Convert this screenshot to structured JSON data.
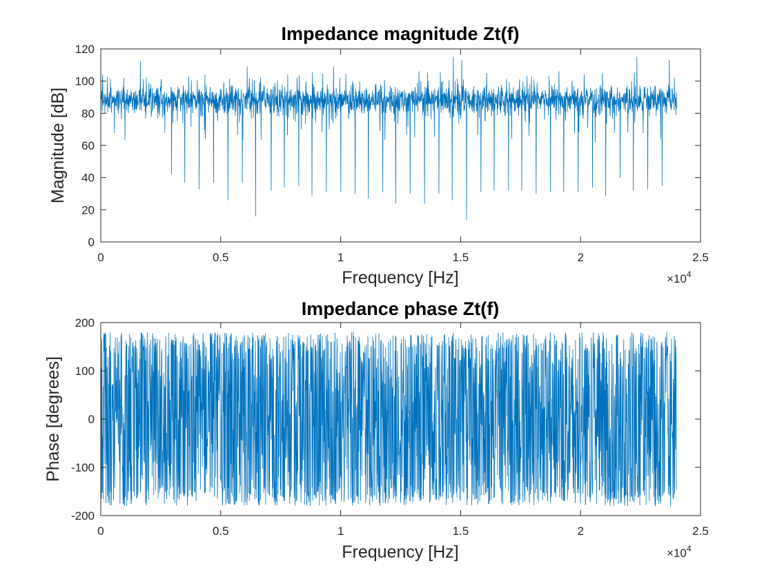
{
  "chart_data": [
    {
      "type": "line",
      "title": "Impedance magnitude Zt(f)",
      "xlabel": "Frequency [Hz]",
      "ylabel": "Magnitude [dB]",
      "xlim": [
        0,
        25000
      ],
      "ylim": [
        0,
        120
      ],
      "x_exponent_label": "×10",
      "x_exponent_power": "4",
      "xticks": [
        0,
        5000,
        10000,
        15000,
        20000,
        25000
      ],
      "xtick_labels": [
        "0",
        "0.5",
        "1",
        "1.5",
        "2",
        "2.5"
      ],
      "yticks": [
        0,
        20,
        40,
        60,
        80,
        100,
        120
      ],
      "ytick_labels": [
        "0",
        "20",
        "40",
        "60",
        "80",
        "100",
        "120"
      ],
      "grid": false,
      "series": [
        {
          "color": "#0072BD",
          "x_range": [
            0,
            24000
          ],
          "baseline_db": 88,
          "noise_spread_db": 6,
          "dips": [
            {
              "x": 2950,
              "y": 42
            },
            {
              "x": 3500,
              "y": 37
            },
            {
              "x": 4100,
              "y": 33
            },
            {
              "x": 4700,
              "y": 37
            },
            {
              "x": 5300,
              "y": 26
            },
            {
              "x": 5900,
              "y": 37
            },
            {
              "x": 6450,
              "y": 16
            },
            {
              "x": 7100,
              "y": 32
            },
            {
              "x": 7650,
              "y": 34
            },
            {
              "x": 8250,
              "y": 35
            },
            {
              "x": 8800,
              "y": 29
            },
            {
              "x": 9400,
              "y": 31
            },
            {
              "x": 10000,
              "y": 31
            },
            {
              "x": 10600,
              "y": 30
            },
            {
              "x": 11150,
              "y": 27
            },
            {
              "x": 11750,
              "y": 31
            },
            {
              "x": 12300,
              "y": 24
            },
            {
              "x": 12900,
              "y": 30
            },
            {
              "x": 13500,
              "y": 24
            },
            {
              "x": 14100,
              "y": 30
            },
            {
              "x": 14650,
              "y": 26
            },
            {
              "x": 15250,
              "y": 14
            },
            {
              "x": 15850,
              "y": 31
            },
            {
              "x": 16400,
              "y": 32
            },
            {
              "x": 17000,
              "y": 32
            },
            {
              "x": 17550,
              "y": 32
            },
            {
              "x": 18150,
              "y": 30
            },
            {
              "x": 18750,
              "y": 31
            },
            {
              "x": 19300,
              "y": 31
            },
            {
              "x": 19900,
              "y": 31
            },
            {
              "x": 20500,
              "y": 34
            },
            {
              "x": 21050,
              "y": 29
            },
            {
              "x": 21650,
              "y": 40
            },
            {
              "x": 22200,
              "y": 32
            },
            {
              "x": 22800,
              "y": 33
            },
            {
              "x": 23400,
              "y": 35
            }
          ],
          "peaks": [
            {
              "x": 1650,
              "y": 112
            },
            {
              "x": 6100,
              "y": 109
            },
            {
              "x": 9700,
              "y": 109
            },
            {
              "x": 14700,
              "y": 115
            },
            {
              "x": 15050,
              "y": 113
            },
            {
              "x": 22350,
              "y": 115
            },
            {
              "x": 23700,
              "y": 113
            }
          ]
        }
      ]
    },
    {
      "type": "line",
      "title": "Impedance phase Zt(f)",
      "xlabel": "Frequency [Hz]",
      "ylabel": "Phase [degrees]",
      "xlim": [
        0,
        25000
      ],
      "ylim": [
        -200,
        200
      ],
      "x_exponent_label": "×10",
      "x_exponent_power": "4",
      "xticks": [
        0,
        5000,
        10000,
        15000,
        20000,
        25000
      ],
      "xtick_labels": [
        "0",
        "0.5",
        "1",
        "1.5",
        "2",
        "2.5"
      ],
      "yticks": [
        -200,
        -100,
        0,
        100,
        200
      ],
      "ytick_labels": [
        "-200",
        "-100",
        "0",
        "100",
        "200"
      ],
      "grid": false,
      "series": [
        {
          "color": "#0072BD",
          "x_range": [
            0,
            24000
          ],
          "value_range": [
            -180,
            180
          ]
        }
      ]
    }
  ]
}
